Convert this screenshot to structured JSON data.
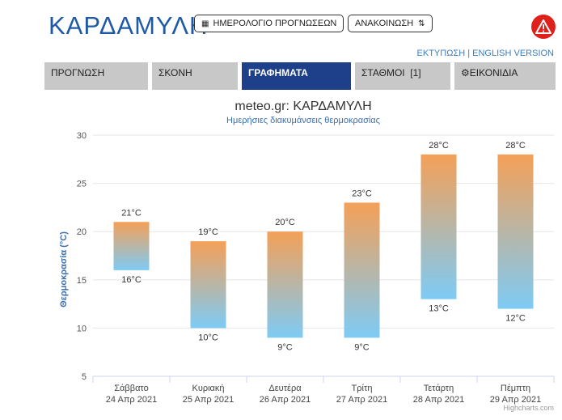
{
  "header": {
    "title": "ΚΑΡΔΑΜΥΛΗ",
    "calendar_button": "ΗΜΕΡΟΛΟΓΙΟ ΠΡΟΓΝΩΣΕΩΝ",
    "announcement_button": "ΑΝΑΚΟΙΝΩΣΗ"
  },
  "links": {
    "print": "ΕΚΤΥΠΩΣΗ",
    "separator": "|",
    "english": "ENGLISH VERSION"
  },
  "tabs": [
    {
      "label": "ΠΡΟΓΝΩΣΗ",
      "active": false
    },
    {
      "label": "ΣΚΟΝΗ",
      "active": false
    },
    {
      "label": "ΓΡΑΦΗΜΑΤΑ",
      "active": true
    },
    {
      "label": "ΣΤΑΘΜΟΙ  [1]",
      "active": false
    },
    {
      "label": "ΕΙΚΟΝΙΔΙΑ",
      "active": false
    }
  ],
  "credit": "Highcharts.com",
  "colors": {
    "title_blue": "#1f5aa6",
    "tab_active": "#1e3f8a",
    "bar_top": "#f4a057",
    "bar_bottom": "#7ecbf5"
  },
  "chart_data": {
    "type": "bar",
    "title": "meteo.gr: ΚΑΡΔΑΜΥΛΗ",
    "subtitle": "Ημερήσιες διακυμάνσεις θερμοκρασίας",
    "ylabel": "Θερμοκρασία (°C)",
    "ylim": [
      5,
      30
    ],
    "yticks": [
      5,
      10,
      15,
      20,
      25,
      30
    ],
    "grid": true,
    "categories": [
      [
        "Σάββατο",
        "24 Απρ 2021"
      ],
      [
        "Κυριακή",
        "25 Απρ 2021"
      ],
      [
        "Δευτέρα",
        "26 Απρ 2021"
      ],
      [
        "Τρίτη",
        "27 Απρ 2021"
      ],
      [
        "Τετάρτη",
        "28 Απρ 2021"
      ],
      [
        "Πέμπτη",
        "29 Απρ 2021"
      ]
    ],
    "series": [
      {
        "low": [
          16,
          10,
          9,
          9,
          13,
          12
        ],
        "high": [
          21,
          19,
          20,
          23,
          28,
          28
        ]
      }
    ],
    "unit": "°C"
  }
}
